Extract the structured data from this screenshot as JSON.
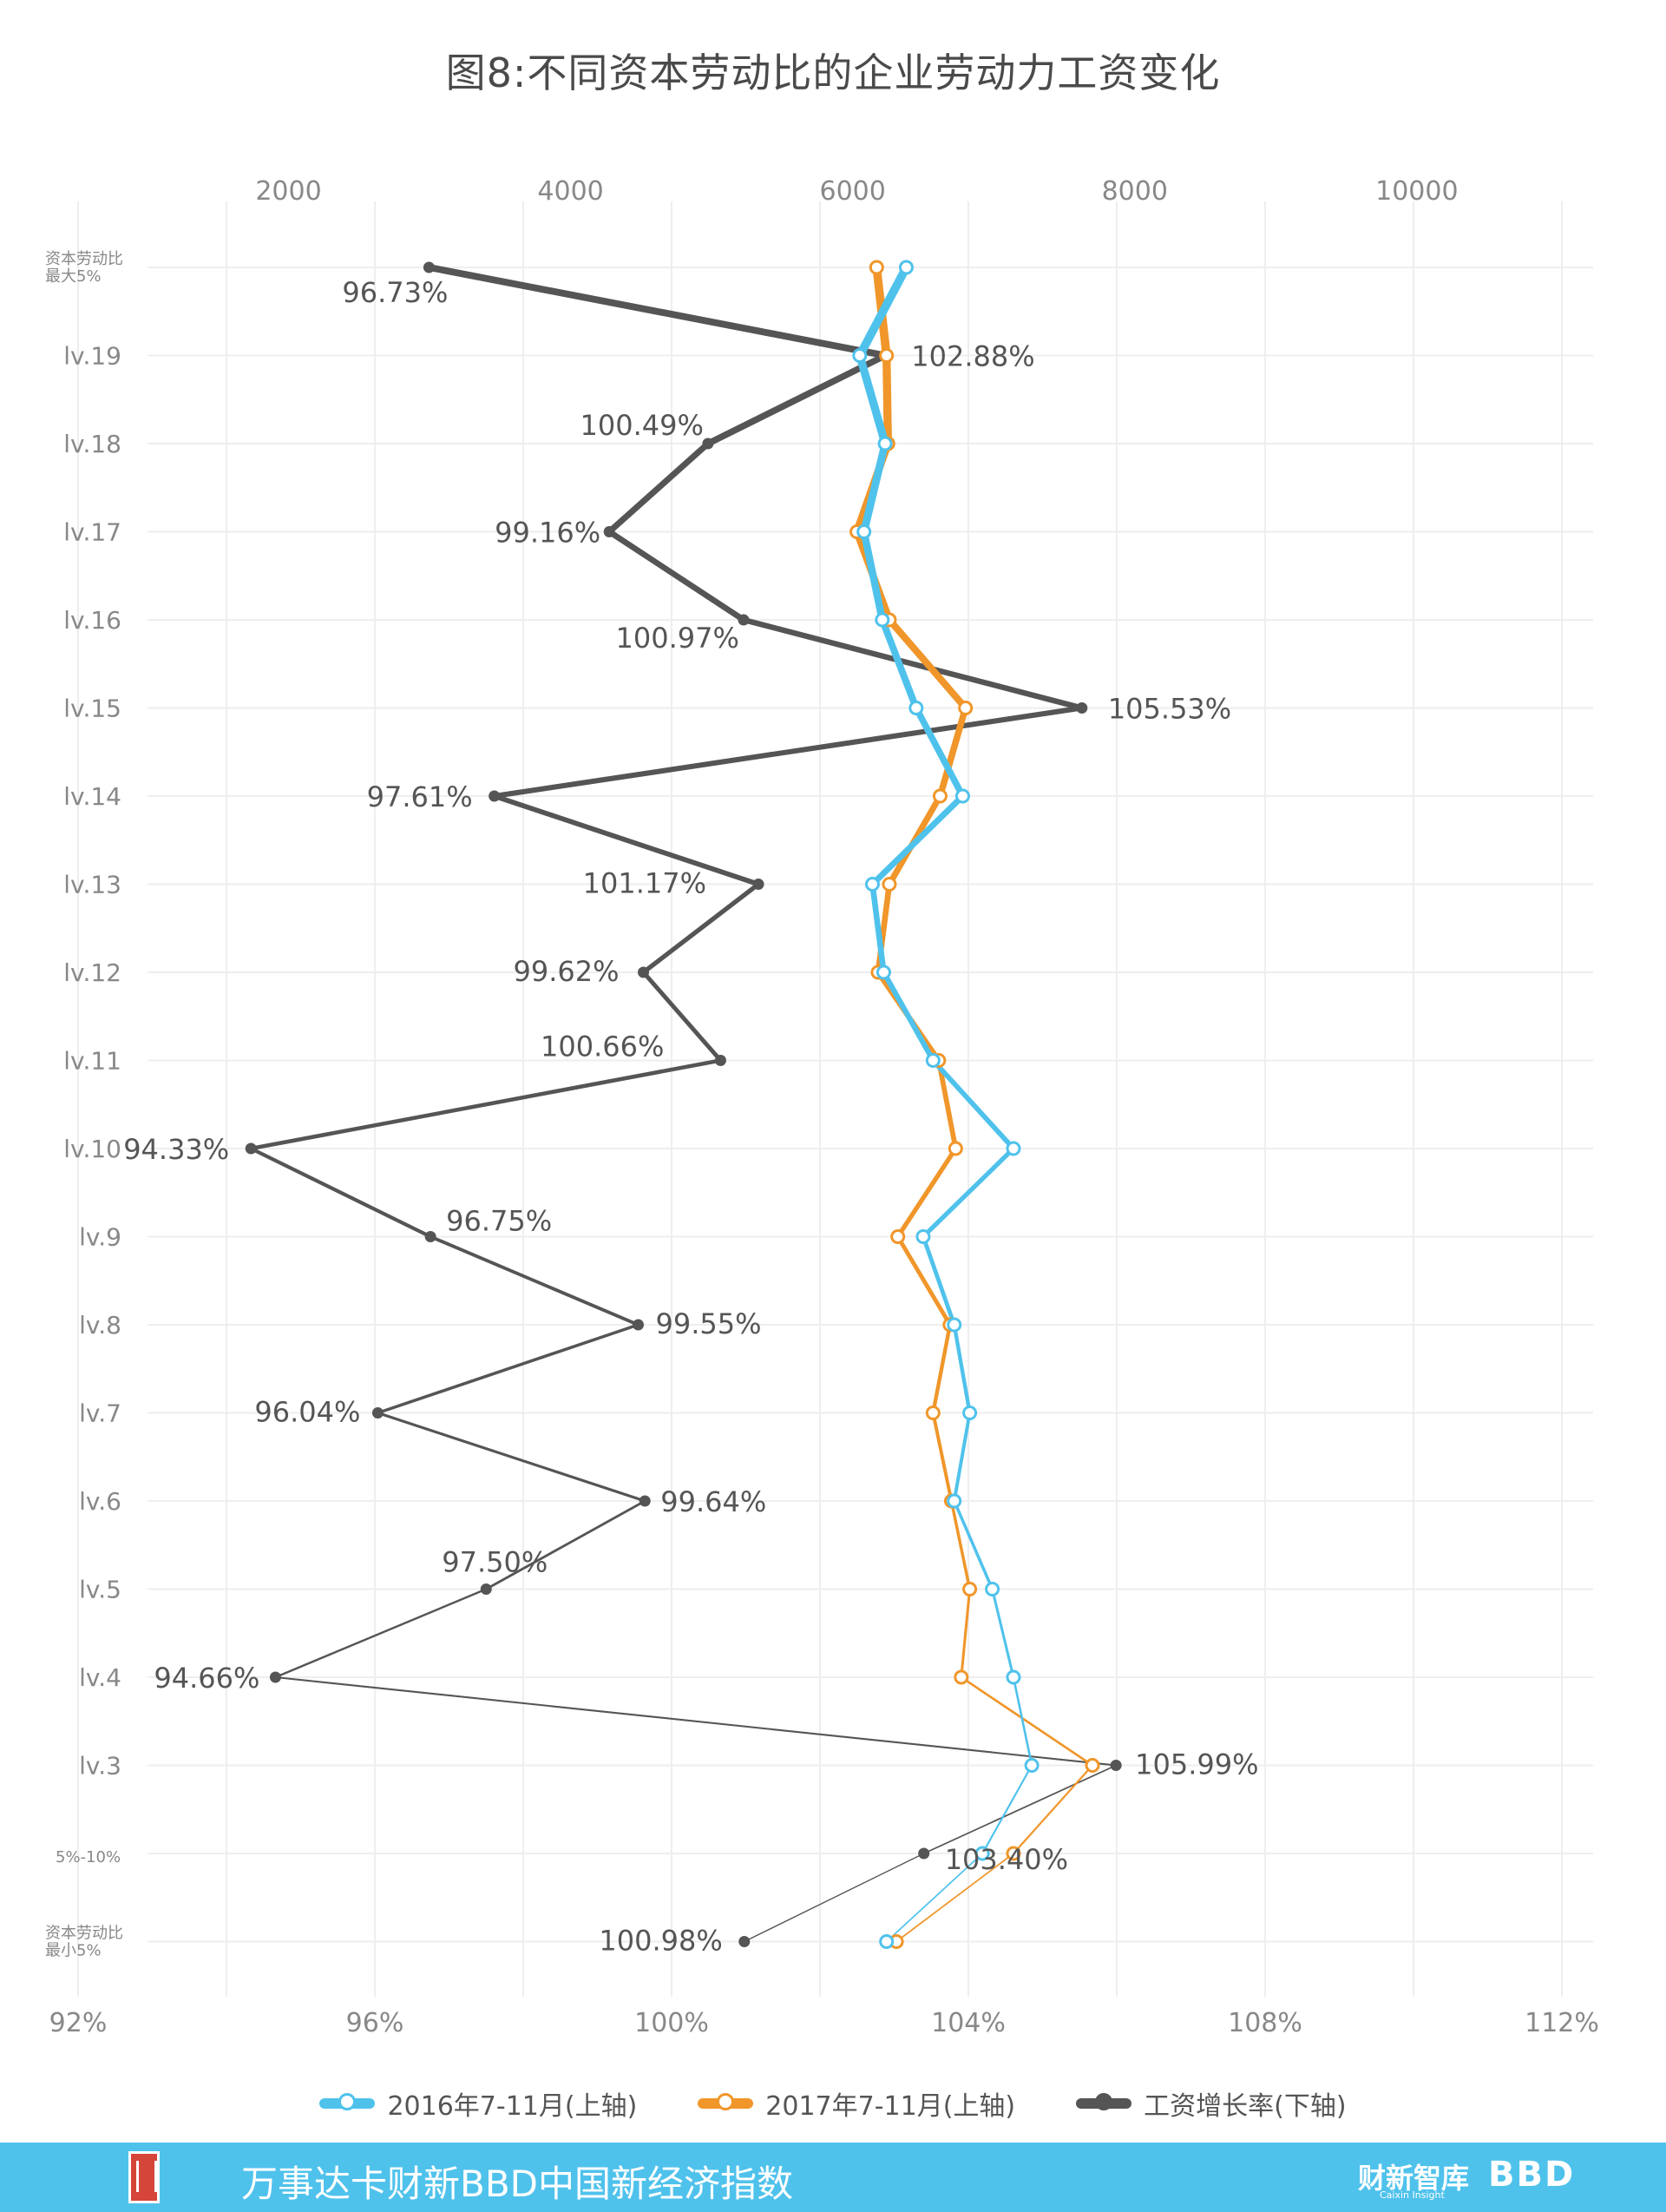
{
  "chart_data": {
    "type": "line",
    "title": "图8:不同资本劳动比的企业劳动力工资变化",
    "categories": [
      "资本劳动比\n最大5%",
      "lv.19",
      "lv.18",
      "lv.17",
      "lv.16",
      "lv.15",
      "lv.14",
      "lv.13",
      "lv.12",
      "lv.11",
      "lv.10",
      "lv.9",
      "lv.8",
      "lv.7",
      "lv.6",
      "lv.5",
      "lv.4",
      "lv.3",
      "5%-10%",
      "资本劳动比\n最小5%"
    ],
    "top_axis": {
      "ticks": [
        2000,
        4000,
        6000,
        8000,
        10000
      ],
      "tick_labels": [
        "2000",
        "4000",
        "6000",
        "8000",
        "10000"
      ],
      "range": [
        1000,
        11250
      ]
    },
    "bottom_axis": {
      "ticks": [
        92,
        96,
        100,
        104,
        108,
        112
      ],
      "tick_labels": [
        "92%",
        "96%",
        "100%",
        "104%",
        "108%",
        "112%"
      ],
      "range": [
        92,
        112
      ]
    },
    "grid": true,
    "legend_position": "bottom-center",
    "series": [
      {
        "name": "2016年7-11月(上轴)",
        "axis": "top",
        "color": "#4fc2ec",
        "values": [
          6380,
          6050,
          6230,
          6080,
          6210,
          6450,
          6780,
          6140,
          6220,
          6570,
          7140,
          6500,
          6720,
          6830,
          6720,
          6990,
          7140,
          7270,
          6920,
          6240
        ]
      },
      {
        "name": "2017年7-11月(上轴)",
        "axis": "top",
        "color": "#f0962a",
        "values": [
          6170,
          6240,
          6250,
          6030,
          6260,
          6800,
          6620,
          6260,
          6180,
          6610,
          6730,
          6320,
          6690,
          6570,
          6700,
          6830,
          6770,
          7700,
          7140,
          6310
        ]
      },
      {
        "name": "工资增长率(下轴)",
        "axis": "bottom",
        "color": "#555555",
        "values": [
          96.73,
          102.88,
          100.49,
          99.16,
          100.97,
          105.53,
          97.61,
          101.17,
          99.62,
          100.66,
          94.33,
          96.75,
          99.55,
          96.04,
          99.64,
          97.5,
          94.66,
          105.99,
          103.4,
          100.98
        ],
        "data_labels": [
          "96.73%",
          "102.88%",
          "100.49%",
          "99.16%",
          "100.97%",
          "105.53%",
          "97.61%",
          "101.17%",
          "99.62%",
          "100.66%",
          "94.33%",
          "96.75%",
          "99.55%",
          "96.04%",
          "99.64%",
          "97.50%",
          "94.66%",
          "105.99%",
          "103.40%",
          "100.98%"
        ]
      }
    ]
  },
  "footer": {
    "text": "万事达卡财新BBD中国新经济指数",
    "brand1": "财新智库",
    "brand1_sub": "Caixin Insight",
    "brand2": "BBD",
    "bg_color": "#4fc2ec"
  }
}
